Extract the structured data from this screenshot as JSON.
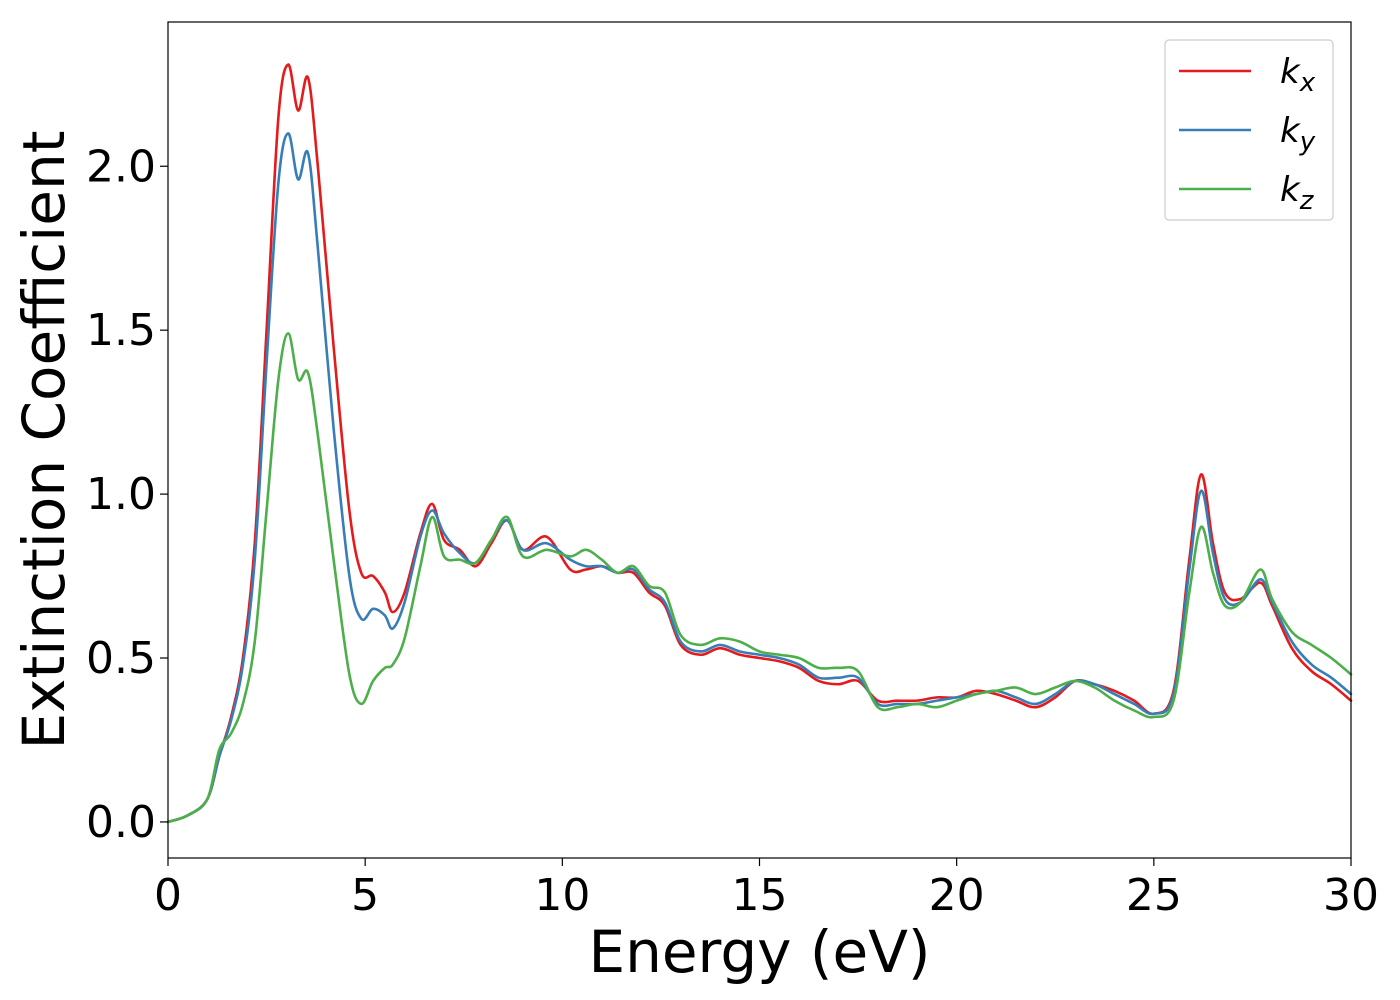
{
  "chart_data": {
    "type": "line",
    "title": "",
    "xlabel": "Energy (eV)",
    "ylabel": "Extinction Coefficient",
    "xlim": [
      0,
      30
    ],
    "ylim": [
      -0.11,
      2.44
    ],
    "xticks": [
      0,
      5,
      10,
      15,
      20,
      25,
      30
    ],
    "xtick_labels": [
      "0",
      "5",
      "10",
      "15",
      "20",
      "25",
      "30"
    ],
    "yticks": [
      0.0,
      0.5,
      1.0,
      1.5,
      2.0
    ],
    "ytick_labels": [
      "0.0",
      "0.5",
      "1.0",
      "1.5",
      "2.0"
    ],
    "grid": false,
    "legend_position": "top-right",
    "series": [
      {
        "name": "x",
        "legend_base": "k",
        "legend_sub": "x",
        "color": "#e41a1c",
        "x": [
          0,
          0.5,
          1,
          1.3,
          1.6,
          1.9,
          2.2,
          2.5,
          2.8,
          3.05,
          3.3,
          3.55,
          3.8,
          4.2,
          4.6,
          4.9,
          5.2,
          5.5,
          5.7,
          6.0,
          6.4,
          6.7,
          7.0,
          7.4,
          7.8,
          8.2,
          8.6,
          9.0,
          9.6,
          10.2,
          10.6,
          11.0,
          11.4,
          11.8,
          12.2,
          12.6,
          13.0,
          13.5,
          14.0,
          14.5,
          15.0,
          15.5,
          16.0,
          16.5,
          17.0,
          17.5,
          18.0,
          18.5,
          19.0,
          19.5,
          20.0,
          20.5,
          21.0,
          21.5,
          22.0,
          22.5,
          23.0,
          23.5,
          24.0,
          24.5,
          25.0,
          25.5,
          25.9,
          26.2,
          26.5,
          26.8,
          27.2,
          27.7,
          28.0,
          28.5,
          29.0,
          29.5,
          30.0
        ],
        "y": [
          0.0,
          0.02,
          0.07,
          0.2,
          0.32,
          0.5,
          0.85,
          1.5,
          2.15,
          2.31,
          2.17,
          2.27,
          2.0,
          1.45,
          0.95,
          0.76,
          0.75,
          0.7,
          0.64,
          0.7,
          0.88,
          0.97,
          0.86,
          0.83,
          0.78,
          0.85,
          0.92,
          0.83,
          0.87,
          0.77,
          0.77,
          0.78,
          0.76,
          0.76,
          0.7,
          0.66,
          0.54,
          0.51,
          0.53,
          0.51,
          0.5,
          0.49,
          0.47,
          0.43,
          0.42,
          0.43,
          0.37,
          0.37,
          0.37,
          0.38,
          0.38,
          0.4,
          0.39,
          0.37,
          0.35,
          0.38,
          0.43,
          0.42,
          0.4,
          0.37,
          0.33,
          0.4,
          0.8,
          1.06,
          0.85,
          0.7,
          0.68,
          0.73,
          0.66,
          0.53,
          0.46,
          0.42,
          0.37
        ]
      },
      {
        "name": "y",
        "legend_base": "k",
        "legend_sub": "y",
        "color": "#377eb8",
        "x": [
          0,
          0.5,
          1,
          1.3,
          1.6,
          1.9,
          2.2,
          2.5,
          2.8,
          3.05,
          3.3,
          3.55,
          3.8,
          4.2,
          4.6,
          4.9,
          5.2,
          5.5,
          5.7,
          6.0,
          6.4,
          6.7,
          7.0,
          7.4,
          7.8,
          8.2,
          8.6,
          9.0,
          9.6,
          10.2,
          10.6,
          11.0,
          11.4,
          11.8,
          12.2,
          12.6,
          13.0,
          13.5,
          14.0,
          14.5,
          15.0,
          15.5,
          16.0,
          16.5,
          17.0,
          17.5,
          18.0,
          18.5,
          19.0,
          19.5,
          20.0,
          20.5,
          21.0,
          21.5,
          22.0,
          22.5,
          23.0,
          23.5,
          24.0,
          24.5,
          25.0,
          25.5,
          25.9,
          26.2,
          26.5,
          26.8,
          27.2,
          27.7,
          28.0,
          28.5,
          29.0,
          29.5,
          30.0
        ],
        "y": [
          0.0,
          0.02,
          0.07,
          0.2,
          0.31,
          0.48,
          0.8,
          1.4,
          1.95,
          2.1,
          1.96,
          2.04,
          1.75,
          1.2,
          0.75,
          0.62,
          0.65,
          0.63,
          0.59,
          0.67,
          0.87,
          0.95,
          0.88,
          0.82,
          0.79,
          0.86,
          0.92,
          0.83,
          0.85,
          0.8,
          0.78,
          0.78,
          0.76,
          0.77,
          0.71,
          0.67,
          0.55,
          0.52,
          0.54,
          0.52,
          0.51,
          0.5,
          0.48,
          0.44,
          0.44,
          0.44,
          0.36,
          0.36,
          0.36,
          0.37,
          0.38,
          0.39,
          0.4,
          0.38,
          0.36,
          0.39,
          0.43,
          0.42,
          0.39,
          0.36,
          0.33,
          0.39,
          0.77,
          1.01,
          0.82,
          0.68,
          0.67,
          0.74,
          0.67,
          0.55,
          0.48,
          0.44,
          0.39
        ]
      },
      {
        "name": "z",
        "legend_base": "k",
        "legend_sub": "z",
        "color": "#4daf4a",
        "x": [
          0,
          0.5,
          1,
          1.3,
          1.6,
          1.9,
          2.2,
          2.5,
          2.8,
          3.05,
          3.3,
          3.55,
          3.8,
          4.2,
          4.6,
          4.9,
          5.2,
          5.5,
          5.7,
          6.0,
          6.4,
          6.7,
          7.0,
          7.4,
          7.8,
          8.2,
          8.6,
          9.0,
          9.6,
          10.2,
          10.6,
          11.0,
          11.4,
          11.8,
          12.2,
          12.6,
          13.0,
          13.5,
          14.0,
          14.5,
          15.0,
          15.5,
          16.0,
          16.5,
          17.0,
          17.5,
          18.0,
          18.5,
          19.0,
          19.5,
          20.0,
          20.5,
          21.0,
          21.5,
          22.0,
          22.5,
          23.0,
          23.5,
          24.0,
          24.5,
          25.0,
          25.5,
          25.9,
          26.2,
          26.5,
          26.8,
          27.2,
          27.7,
          28.0,
          28.5,
          29.0,
          29.5,
          30.0
        ],
        "y": [
          0.0,
          0.02,
          0.07,
          0.22,
          0.27,
          0.36,
          0.55,
          0.95,
          1.35,
          1.49,
          1.35,
          1.37,
          1.18,
          0.8,
          0.45,
          0.36,
          0.43,
          0.47,
          0.48,
          0.56,
          0.78,
          0.93,
          0.81,
          0.8,
          0.79,
          0.86,
          0.93,
          0.81,
          0.83,
          0.81,
          0.83,
          0.8,
          0.76,
          0.78,
          0.72,
          0.7,
          0.57,
          0.54,
          0.56,
          0.55,
          0.52,
          0.51,
          0.5,
          0.47,
          0.47,
          0.46,
          0.35,
          0.35,
          0.36,
          0.35,
          0.37,
          0.39,
          0.4,
          0.41,
          0.39,
          0.41,
          0.43,
          0.41,
          0.37,
          0.34,
          0.32,
          0.37,
          0.7,
          0.9,
          0.76,
          0.66,
          0.67,
          0.77,
          0.68,
          0.58,
          0.54,
          0.5,
          0.45
        ]
      }
    ]
  }
}
